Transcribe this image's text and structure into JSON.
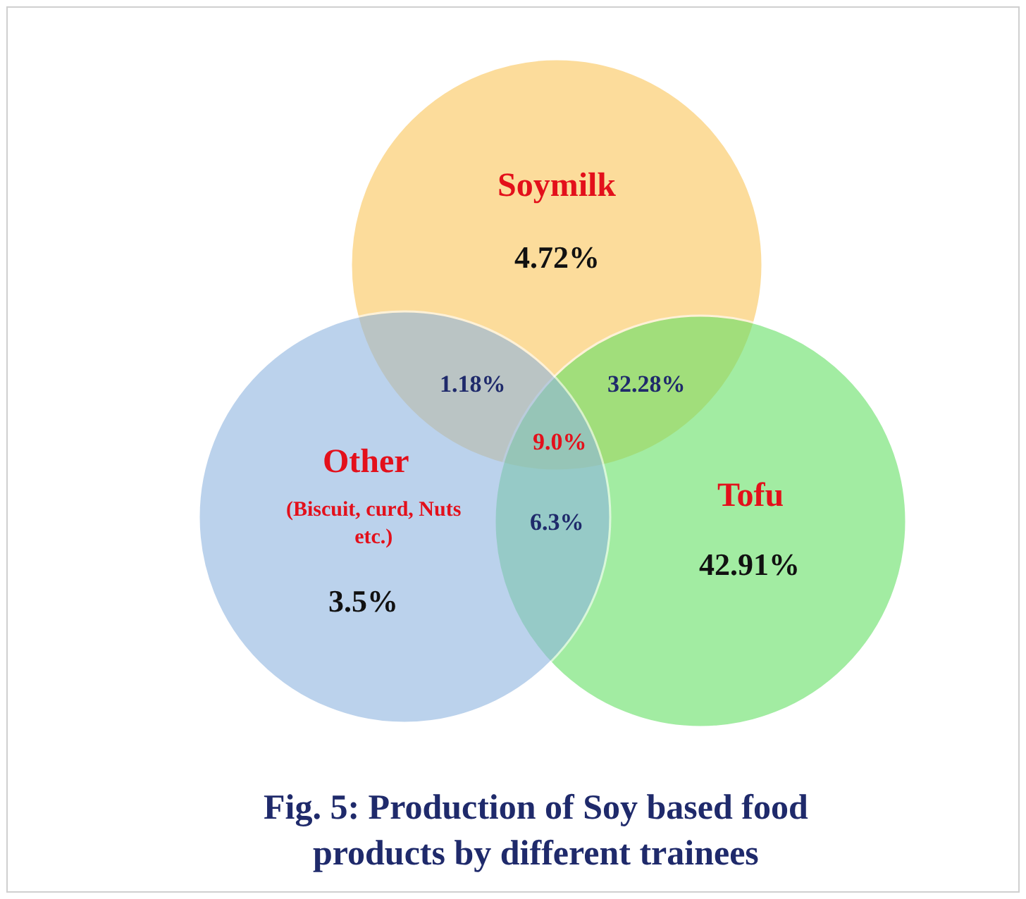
{
  "chart_data": {
    "type": "other",
    "title": "Fig. 5: Production of Soy based food products by different trainees",
    "categories": [
      "Soymilk",
      "Tofu",
      "Other"
    ],
    "values": [
      4.72,
      42.91,
      3.5
    ],
    "value_labels": [
      "4.72%",
      "42.91%",
      "3.5%"
    ],
    "colors": [
      "#fbc65a",
      "#66e066",
      "#8fb5e0"
    ],
    "annotations": [
      "(Biscuit, curd, Nuts etc.)",
      "1.18%",
      "32.28%",
      "6.3%",
      "9.0%"
    ]
  }
}
